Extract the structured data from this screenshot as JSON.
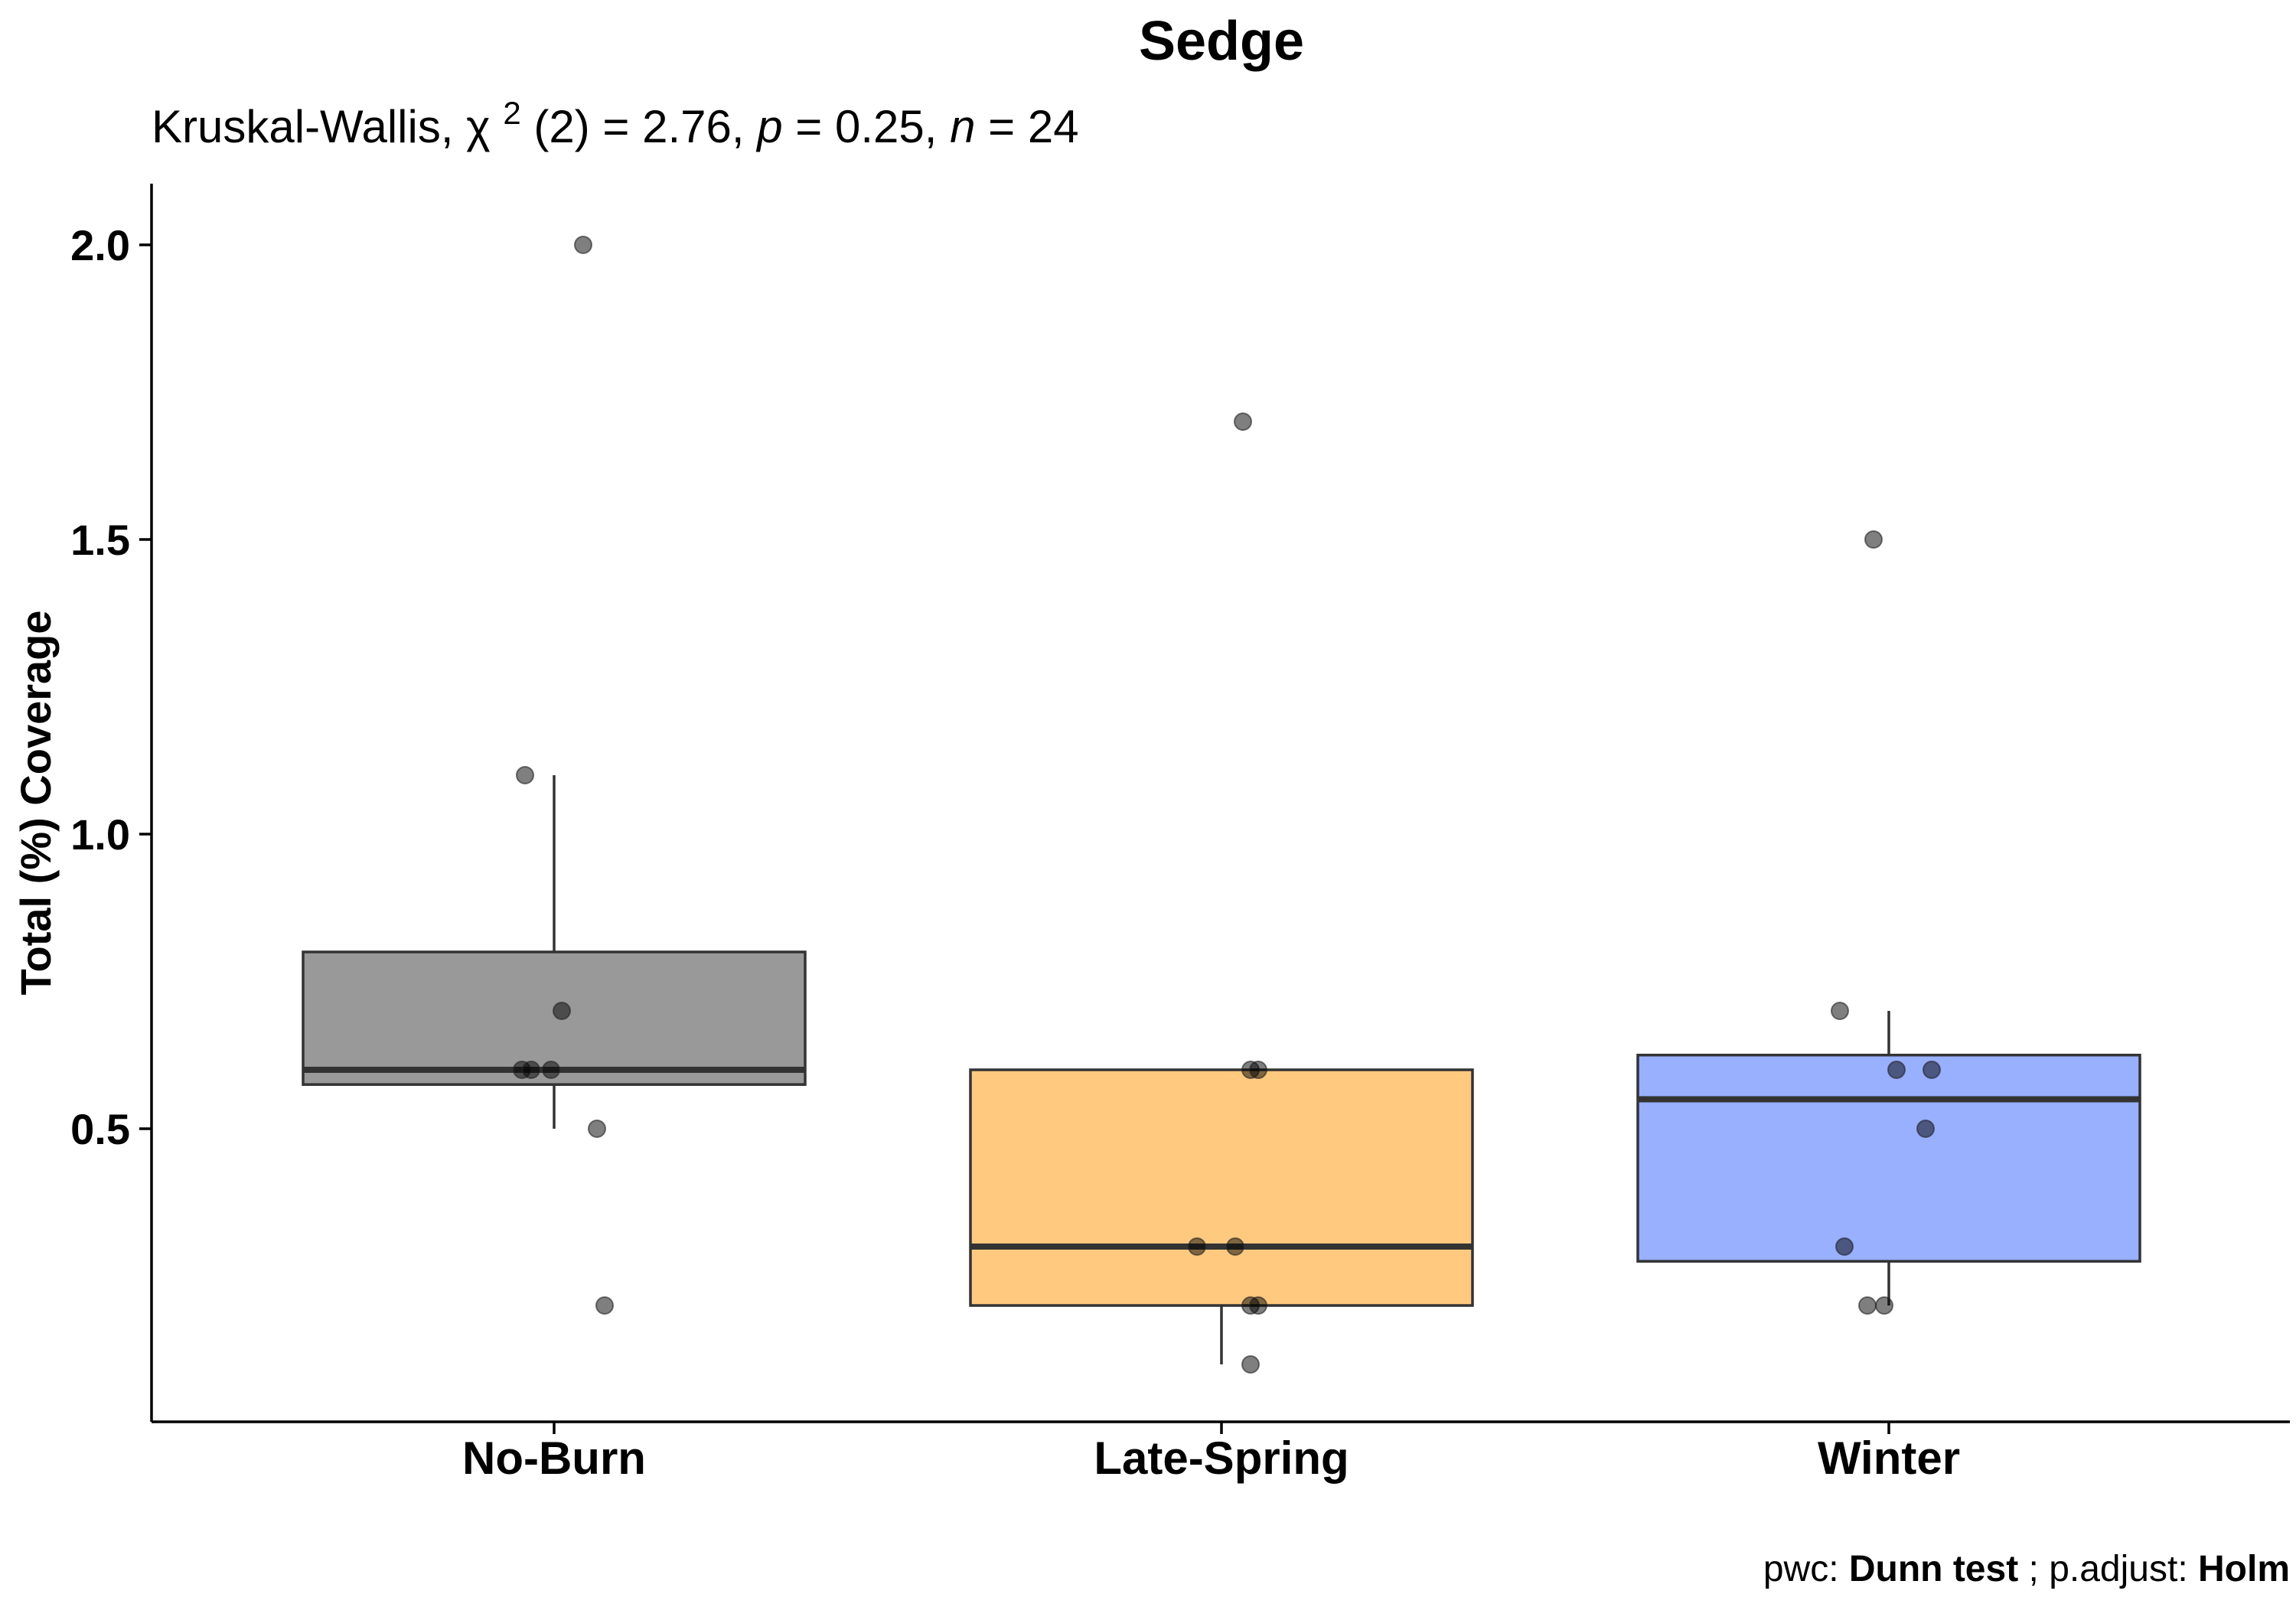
{
  "chart_data": {
    "type": "box",
    "title": "Sedge",
    "subtitle": {
      "test_name": "Kruskal-Wallis, ",
      "chi": "χ",
      "sup": "2",
      "df_part": "(2) = 2.76, ",
      "p_symbol": "p",
      "p_part": " = 0.25, ",
      "n_symbol": "n",
      "n_part": " = 24"
    },
    "caption": {
      "pwc_label": "pwc: ",
      "pwc_value": "Dunn test",
      "sep": "; p.adjust: ",
      "adjust_value": "Holm"
    },
    "xlabel": "",
    "ylabel": "Total (%) Coverage",
    "ylim": [
      0.0,
      2.09
    ],
    "yticks": [
      0.5,
      1.0,
      1.5,
      2.0
    ],
    "ytick_labels": [
      "0.5",
      "1.0",
      "1.5",
      "2.0"
    ],
    "categories": [
      "No-Burn",
      "Late-Spring",
      "Winter"
    ],
    "grid": false,
    "legend": "none",
    "boxes": [
      {
        "category": "No-Burn",
        "color": "#999999",
        "whisker_low": 0.5,
        "q1": 0.575,
        "median": 0.6,
        "q3": 0.8,
        "whisker_high": 1.1
      },
      {
        "category": "Late-Spring",
        "color": "#FFCA80",
        "whisker_low": 0.1,
        "q1": 0.2,
        "median": 0.3,
        "q3": 0.6,
        "whisker_high": 0.6
      },
      {
        "category": "Winter",
        "color": "#99AFFF",
        "whisker_low": 0.2,
        "q1": 0.275,
        "median": 0.55,
        "q3": 0.625,
        "whisker_high": 0.7
      }
    ],
    "points": [
      {
        "category": "No-Burn",
        "y": 2.0
      },
      {
        "category": "No-Burn",
        "y": 1.1
      },
      {
        "category": "No-Burn",
        "y": 0.7
      },
      {
        "category": "No-Burn",
        "y": 0.6
      },
      {
        "category": "No-Burn",
        "y": 0.6
      },
      {
        "category": "No-Burn",
        "y": 0.6
      },
      {
        "category": "No-Burn",
        "y": 0.5
      },
      {
        "category": "No-Burn",
        "y": 0.2
      },
      {
        "category": "Late-Spring",
        "y": 1.7
      },
      {
        "category": "Late-Spring",
        "y": 0.6
      },
      {
        "category": "Late-Spring",
        "y": 0.6
      },
      {
        "category": "Late-Spring",
        "y": 0.3
      },
      {
        "category": "Late-Spring",
        "y": 0.3
      },
      {
        "category": "Late-Spring",
        "y": 0.2
      },
      {
        "category": "Late-Spring",
        "y": 0.2
      },
      {
        "category": "Late-Spring",
        "y": 0.1
      },
      {
        "category": "Winter",
        "y": 1.5
      },
      {
        "category": "Winter",
        "y": 0.7
      },
      {
        "category": "Winter",
        "y": 0.6
      },
      {
        "category": "Winter",
        "y": 0.6
      },
      {
        "category": "Winter",
        "y": 0.5
      },
      {
        "category": "Winter",
        "y": 0.3
      },
      {
        "category": "Winter",
        "y": 0.2
      },
      {
        "category": "Winter",
        "y": 0.2
      }
    ]
  }
}
